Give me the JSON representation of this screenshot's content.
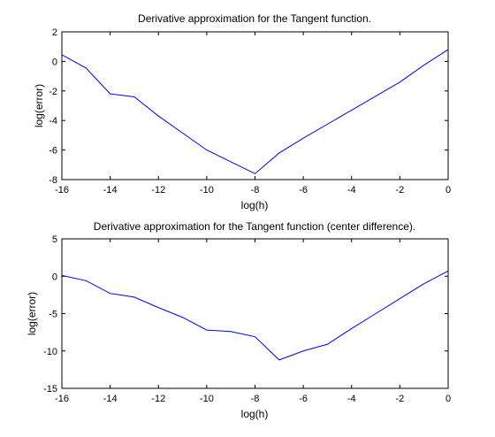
{
  "chart_data": [
    {
      "type": "line",
      "title": "Derivative approximation for the Tangent function.",
      "xlabel": "log(h)",
      "ylabel": "log(error)",
      "xlim": [
        -16,
        0
      ],
      "ylim": [
        -8,
        2
      ],
      "xticks": [
        -16,
        -14,
        -12,
        -10,
        -8,
        -6,
        -4,
        -2,
        0
      ],
      "yticks": [
        -8,
        -6,
        -4,
        -2,
        0,
        2
      ],
      "grid": false,
      "series": [
        {
          "color": "#0000ff",
          "x": [
            -16,
            -15,
            -14,
            -13,
            -12,
            -11,
            -10,
            -9,
            -8,
            -7,
            -6,
            -5,
            -4,
            -3,
            -2,
            -1,
            0
          ],
          "y": [
            0.45,
            -0.45,
            -2.2,
            -2.4,
            -3.7,
            -4.85,
            -6.0,
            -6.8,
            -7.6,
            -6.2,
            -5.2,
            -4.25,
            -3.3,
            -2.35,
            -1.4,
            -0.25,
            0.8
          ]
        }
      ]
    },
    {
      "type": "line",
      "title": "Derivative approximation for the Tangent function (center difference).",
      "xlabel": "log(h)",
      "ylabel": "log(error)",
      "xlim": [
        -16,
        0
      ],
      "ylim": [
        -15,
        5
      ],
      "xticks": [
        -16,
        -14,
        -12,
        -10,
        -8,
        -6,
        -4,
        -2,
        0
      ],
      "yticks": [
        -15,
        -10,
        -5,
        0,
        5
      ],
      "grid": false,
      "series": [
        {
          "color": "#0000ff",
          "x": [
            -16,
            -15,
            -14,
            -13,
            -12,
            -11,
            -10,
            -9,
            -8,
            -7,
            -6,
            -5,
            -4,
            -3,
            -2,
            -1,
            0
          ],
          "y": [
            0.1,
            -0.6,
            -2.3,
            -2.8,
            -4.2,
            -5.5,
            -7.2,
            -7.4,
            -8.1,
            -11.2,
            -10.0,
            -9.1,
            -7.0,
            -5.0,
            -3.0,
            -1.0,
            0.7
          ]
        }
      ]
    }
  ]
}
